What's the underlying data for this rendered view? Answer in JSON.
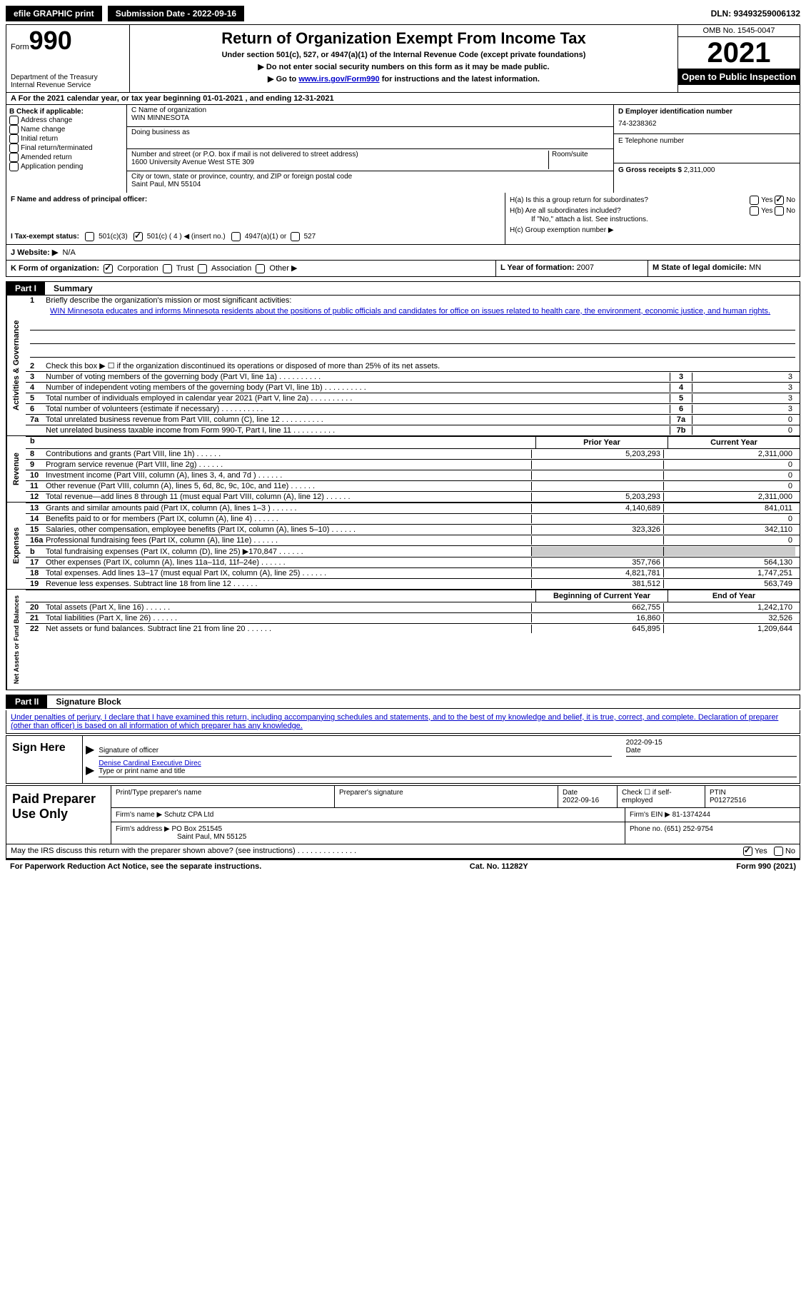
{
  "topbar": {
    "efile_label": "efile GRAPHIC print",
    "submission": "Submission Date - 2022-09-16",
    "dln": "DLN: 93493259006132"
  },
  "header": {
    "form_word": "Form",
    "form_num": "990",
    "dept": "Department of the Treasury",
    "irs": "Internal Revenue Service",
    "title": "Return of Organization Exempt From Income Tax",
    "sub": "Under section 501(c), 527, or 4947(a)(1) of the Internal Revenue Code (except private foundations)",
    "note1": "▶ Do not enter social security numbers on this form as it may be made public.",
    "note2_pre": "▶ Go to ",
    "note2_link": "www.irs.gov/Form990",
    "note2_post": " for instructions and the latest information.",
    "omb": "OMB No. 1545-0047",
    "year": "2021",
    "inspection": "Open to Public Inspection"
  },
  "line_a": "A For the 2021 calendar year, or tax year beginning 01-01-2021   , and ending 12-31-2021",
  "box_b": {
    "header": "B Check if applicable:",
    "items": [
      "Address change",
      "Name change",
      "Initial return",
      "Final return/terminated",
      "Amended return",
      "Application pending"
    ]
  },
  "box_c": {
    "label_name": "C Name of organization",
    "name": "WIN MINNESOTA",
    "dba_label": "Doing business as",
    "street_label": "Number and street (or P.O. box if mail is not delivered to street address)",
    "room_label": "Room/suite",
    "street": "1600 University Avenue West STE 309",
    "city_label": "City or town, state or province, country, and ZIP or foreign postal code",
    "city": "Saint Paul, MN  55104"
  },
  "box_d": {
    "label": "D Employer identification number",
    "value": "74-3238362",
    "e_label": "E Telephone number",
    "g_label": "G Gross receipts $",
    "g_value": "2,311,000"
  },
  "box_f": {
    "label": "F Name and address of principal officer:"
  },
  "box_h": {
    "ha": "H(a)  Is this a group return for subordinates?",
    "hb": "H(b)  Are all subordinates included?",
    "hb_note": "If \"No,\" attach a list. See instructions.",
    "hc": "H(c)  Group exemption number ▶",
    "yes": "Yes",
    "no": "No"
  },
  "row_i": {
    "label": "I   Tax-exempt status:",
    "o501c3": "501(c)(3)",
    "o501c": "501(c) ( 4 ) ◀ (insert no.)",
    "o4947": "4947(a)(1) or",
    "o527": "527"
  },
  "row_j": {
    "label": "J   Website: ▶",
    "value": "N/A"
  },
  "row_k": {
    "label": "K Form of organization:",
    "corp": "Corporation",
    "trust": "Trust",
    "assoc": "Association",
    "other": "Other ▶"
  },
  "row_l": {
    "label": "L Year of formation:",
    "value": "2007"
  },
  "row_m": {
    "label": "M State of legal domicile:",
    "value": "MN"
  },
  "part1": {
    "tab": "Part I",
    "title": "Summary"
  },
  "summary": {
    "s1_label": "Briefly describe the organization's mission or most significant activities:",
    "s1_text": "WIN Minnesota educates and informs Minnesota residents about the positions of public officials and candidates for office on issues related to health care, the environment, economic justice, and human rights.",
    "s2": "Check this box ▶ ☐ if the organization discontinued its operations or disposed of more than 25% of its net assets.",
    "rows_ag": [
      {
        "n": "3",
        "t": "Number of voting members of the governing body (Part VI, line 1a)",
        "b": "3",
        "v": "3"
      },
      {
        "n": "4",
        "t": "Number of independent voting members of the governing body (Part VI, line 1b)",
        "b": "4",
        "v": "3"
      },
      {
        "n": "5",
        "t": "Total number of individuals employed in calendar year 2021 (Part V, line 2a)",
        "b": "5",
        "v": "3"
      },
      {
        "n": "6",
        "t": "Total number of volunteers (estimate if necessary)",
        "b": "6",
        "v": "3"
      },
      {
        "n": "7a",
        "t": "Total unrelated business revenue from Part VIII, column (C), line 12",
        "b": "7a",
        "v": "0"
      },
      {
        "n": "",
        "t": "Net unrelated business taxable income from Form 990-T, Part I, line 11",
        "b": "7b",
        "v": "0"
      }
    ],
    "col_prior": "Prior Year",
    "col_current": "Current Year",
    "rev": [
      {
        "n": "8",
        "t": "Contributions and grants (Part VIII, line 1h)",
        "p": "5,203,293",
        "c": "2,311,000"
      },
      {
        "n": "9",
        "t": "Program service revenue (Part VIII, line 2g)",
        "p": "",
        "c": "0"
      },
      {
        "n": "10",
        "t": "Investment income (Part VIII, column (A), lines 3, 4, and 7d )",
        "p": "",
        "c": "0"
      },
      {
        "n": "11",
        "t": "Other revenue (Part VIII, column (A), lines 5, 6d, 8c, 9c, 10c, and 11e)",
        "p": "",
        "c": "0"
      },
      {
        "n": "12",
        "t": "Total revenue—add lines 8 through 11 (must equal Part VIII, column (A), line 12)",
        "p": "5,203,293",
        "c": "2,311,000"
      }
    ],
    "exp": [
      {
        "n": "13",
        "t": "Grants and similar amounts paid (Part IX, column (A), lines 1–3 )",
        "p": "4,140,689",
        "c": "841,011"
      },
      {
        "n": "14",
        "t": "Benefits paid to or for members (Part IX, column (A), line 4)",
        "p": "",
        "c": "0"
      },
      {
        "n": "15",
        "t": "Salaries, other compensation, employee benefits (Part IX, column (A), lines 5–10)",
        "p": "323,326",
        "c": "342,110"
      },
      {
        "n": "16a",
        "t": "Professional fundraising fees (Part IX, column (A), line 11e)",
        "p": "",
        "c": "0"
      },
      {
        "n": "b",
        "t": "Total fundraising expenses (Part IX, column (D), line 25) ▶170,847",
        "p": "grey",
        "c": "grey"
      },
      {
        "n": "17",
        "t": "Other expenses (Part IX, column (A), lines 11a–11d, 11f–24e)",
        "p": "357,766",
        "c": "564,130"
      },
      {
        "n": "18",
        "t": "Total expenses. Add lines 13–17 (must equal Part IX, column (A), line 25)",
        "p": "4,821,781",
        "c": "1,747,251"
      },
      {
        "n": "19",
        "t": "Revenue less expenses. Subtract line 18 from line 12",
        "p": "381,512",
        "c": "563,749"
      }
    ],
    "col_begin": "Beginning of Current Year",
    "col_end": "End of Year",
    "net": [
      {
        "n": "20",
        "t": "Total assets (Part X, line 16)",
        "p": "662,755",
        "c": "1,242,170"
      },
      {
        "n": "21",
        "t": "Total liabilities (Part X, line 26)",
        "p": "16,860",
        "c": "32,526"
      },
      {
        "n": "22",
        "t": "Net assets or fund balances. Subtract line 21 from line 20",
        "p": "645,895",
        "c": "1,209,644"
      }
    ],
    "side_ag": "Activities & Governance",
    "side_rev": "Revenue",
    "side_exp": "Expenses",
    "side_net": "Net Assets or Fund Balances"
  },
  "part2": {
    "tab": "Part II",
    "title": "Signature Block"
  },
  "sig": {
    "penalty": "Under penalties of perjury, I declare that I have examined this return, including accompanying schedules and statements, and to the best of my knowledge and belief, it is true, correct, and complete. Declaration of preparer (other than officer) is based on all information of which preparer has any knowledge.",
    "sign_here": "Sign Here",
    "sig_officer": "Signature of officer",
    "date": "Date",
    "date_top": "2022-09-15",
    "name": "Denise Cardinal Executive Direc",
    "name_label": "Type or print name and title"
  },
  "paid": {
    "label": "Paid Preparer Use Only",
    "h1": "Print/Type preparer's name",
    "h2": "Preparer's signature",
    "h3": "Date",
    "h3v": "2022-09-16",
    "h4": "Check ☐ if self-employed",
    "h5": "PTIN",
    "h5v": "P01272516",
    "firm_name_l": "Firm's name    ▶",
    "firm_name": "Schutz CPA Ltd",
    "firm_ein_l": "Firm's EIN ▶",
    "firm_ein": "81-1374244",
    "firm_addr_l": "Firm's address ▶",
    "firm_addr1": "PO Box 251545",
    "firm_addr2": "Saint Paul, MN  55125",
    "phone_l": "Phone no.",
    "phone": "(651) 252-9754"
  },
  "footer": {
    "discuss": "May the IRS discuss this return with the preparer shown above? (see instructions)",
    "yes": "Yes",
    "no": "No",
    "paperwork": "For Paperwork Reduction Act Notice, see the separate instructions.",
    "cat": "Cat. No. 11282Y",
    "form": "Form 990 (2021)"
  }
}
